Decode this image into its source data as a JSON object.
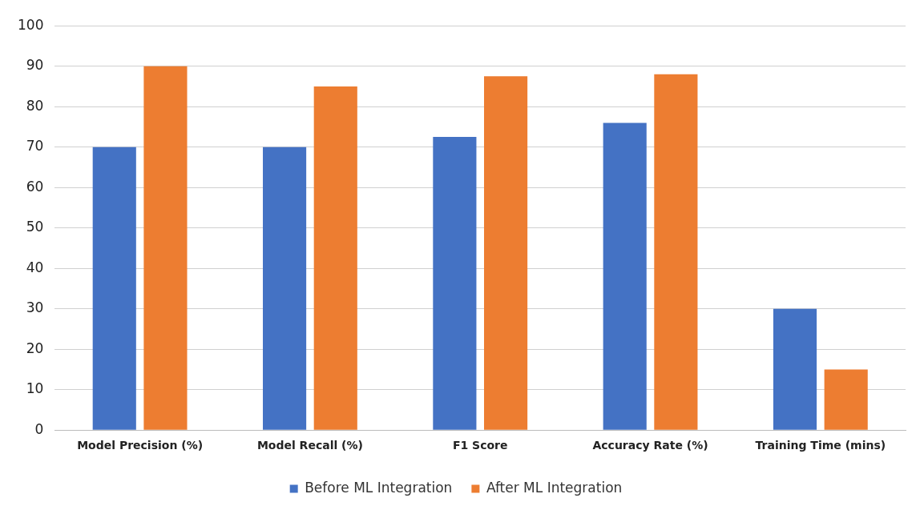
{
  "chart_data": {
    "type": "bar",
    "categories": [
      "Model Precision (%)",
      "Model Recall (%)",
      "F1 Score",
      "Accuracy Rate (%)",
      "Training Time (mins)"
    ],
    "series": [
      {
        "name": "Before ML Integration",
        "color": "#4472c4",
        "values": [
          70,
          70,
          72.5,
          76,
          30
        ]
      },
      {
        "name": "After ML Integration",
        "color": "#ed7d31",
        "values": [
          90,
          85,
          87.5,
          88,
          15
        ]
      }
    ],
    "ylim": [
      0,
      100
    ],
    "yticks": [
      0,
      10,
      20,
      30,
      40,
      50,
      60,
      70,
      80,
      90,
      100
    ],
    "grid": "y",
    "legend": "bottom"
  }
}
